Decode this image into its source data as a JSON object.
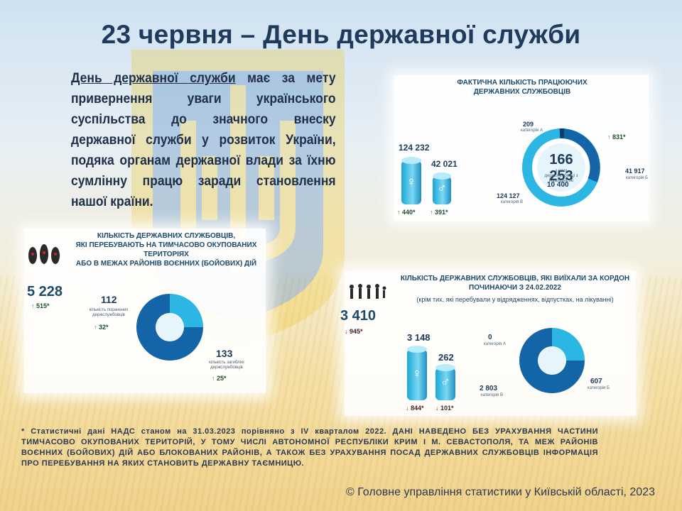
{
  "title": "23 червня – День державної служби",
  "intro": {
    "highlight": "День державної служби",
    "rest": " має за мету привернення уваги українського суспільства до значного внеску державної служби у розвиток України, подяка органам державної влади за їхню сумлінну працю заради становлення нашої країни."
  },
  "panel_actual": {
    "title_line1": "ФАКТИЧНА КІЛЬКІСТЬ ПРАЦЮЮЧИХ",
    "title_line2": "ДЕРЖАВНИХ СЛУЖБОВЦІВ",
    "female_value": "124 232",
    "female_change": "440*",
    "male_value": "42 021",
    "male_change": "391*",
    "total": "166 253",
    "disabled_caption_line1": "з яких",
    "disabled_caption_line2": "держслужбовці з інвалідністю",
    "disabled_value": "10 400",
    "cat_a_value": "209",
    "cat_a_label": "категорія А",
    "cat_b_value": "41 917",
    "cat_b_label": "категорія Б",
    "cat_v_value": "124 127",
    "cat_v_label": "категорія В",
    "cat_a_change": "831*"
  },
  "panel_occupied": {
    "title_line1": "КІЛЬКІСТЬ ДЕРЖАВНИХ СЛУЖБОВЦІВ,",
    "title_line2": "ЯКІ ПЕРЕБУВАЮТЬ НА ТИМЧАСОВО ОКУПОВАНИХ ТЕРИТОРІЯХ",
    "title_line3": "АБО В МЕЖАХ РАЙОНІВ ВОЄННИХ (БОЙОВИХ) ДІЙ",
    "total": "5 228",
    "total_change": "515*",
    "injured_value": "112",
    "injured_label_line1": "кількість поранених",
    "injured_label_line2": "держслужбовців",
    "injured_change": "32*",
    "killed_value": "133",
    "killed_label_line1": "кількість загиблих",
    "killed_label_line2": "держслужбовців",
    "killed_change": "25*"
  },
  "panel_abroad": {
    "title_line1": "КІЛЬКІСТЬ ДЕРЖАВНИХ СЛУЖБОВЦІВ, ЯКІ ВИЇХАЛИ ЗА КОРДОН",
    "title_line2": "ПОЧИНАЮЧИ З 24.02.2022",
    "subtitle": "(крім тих, які перебували у відрядженнях, відпустках, на лікуванні)",
    "total": "3 410",
    "total_change": "945*",
    "female_value": "3 148",
    "female_change": "844*",
    "male_value": "262",
    "male_change": "101*",
    "cat_a_value": "0",
    "cat_a_label": "категорія А",
    "cat_b_value": "607",
    "cat_b_label": "категорія Б",
    "cat_v_value": "2 803",
    "cat_v_label": "категорія В"
  },
  "footnote": "* Статистичні дані НАДС станом на 31.03.2023 порівняно з IV кварталом 2022. ДАНІ НАВЕДЕНО БЕЗ УРАХУВАННЯ ЧАСТИНИ ТИМЧАСОВО ОКУПОВАНИХ ТЕРИТОРІЙ, У ТОМУ ЧИСЛІ АВТОНОМНОЇ РЕСПУБЛІКИ КРИМ І М. СЕВАСТОПОЛЯ, ТА МЕЖ РАЙОНІВ ВОЄННИХ (БОЙОВИХ) ДІЙ АБО БЛОКОВАНИХ РАЙОНІВ, А ТАКОЖ БЕЗ УРАХУВАННЯ ПОСАД ДЕРЖАВНИХ СЛУЖБОВЦІВ ІНФОРМАЦІЯ ПРО ПЕРЕБУВАННЯ НА ЯКИХ СТАНОВИТЬ ДЕРЖАВНУ ТАЄМНИЦЮ.",
  "copyright": "© Головне управління статистики у Київській області, 2023",
  "icons": {
    "female": "female-person-icon",
    "male": "male-person-icon",
    "up": "arrow-up-icon",
    "down": "arrow-down-icon"
  },
  "colors": {
    "title": "#1f3a5c",
    "donut_dark": "#1464a8",
    "donut_light": "#2bb6e3",
    "up_arrow": "#2f8f3a",
    "down_arrow": "#c8262a"
  }
}
